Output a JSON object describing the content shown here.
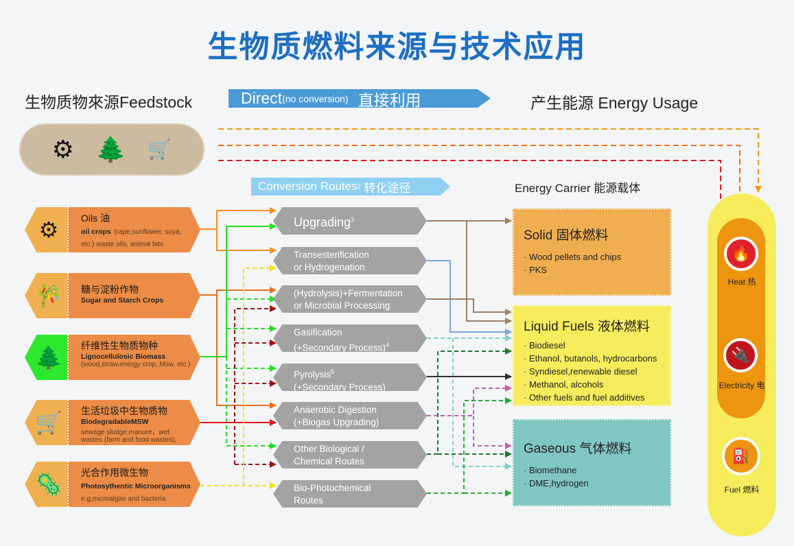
{
  "title": "生物质燃料来源与技术应用",
  "headers": {
    "feedstock": "生物质物來源Feedstock",
    "direct_main": "Direct",
    "direct_sub": "(no conversion)",
    "direct_cn": "直接利用",
    "energy_usage": "产生能源 Energy Usage",
    "conversion": "Conversion Routes",
    "conversion_sup": "2",
    "conversion_cn": "转化途径",
    "energy_carrier": "Energy Carrier  能源载体"
  },
  "direct_icons": [
    "gear-icon",
    "trees-icon",
    "wheelbarrow-icon"
  ],
  "feedstocks": [
    {
      "cn": "Oils 油",
      "en": "oil crops",
      "desc": "(rape,sunflower, soya, etc.) waste oils, animal fats",
      "icon": "gear-icon"
    },
    {
      "cn": "糖与淀粉作物",
      "en": "Sugar and Starch Crops",
      "desc": "",
      "icon": "bamboo-icon"
    },
    {
      "cn": "纤维性生物质物种",
      "en": "Lignocellulosic Biomass",
      "desc": "(wood,straw,energy crop, Msw, etc.)",
      "icon": "trees-icon"
    },
    {
      "cn": "生活垃圾中生物质物",
      "en": "BiodegradableMSW",
      "desc": "sewage sludge,manure，wet wastes (farm and food wastes), macroalgae",
      "icon": "wheelbarrow-icon"
    },
    {
      "cn": "光合作用微生物",
      "en": "Photosythentic Microorganisms",
      "desc": "e.g,microalgae and bacteria",
      "icon": "microorganism-icon"
    }
  ],
  "routes": [
    {
      "l1": "Upgrading",
      "sup": "3",
      "l2": ""
    },
    {
      "l1": "Transesterification",
      "sup": "",
      "l2": "or Hydrogenation"
    },
    {
      "l1": "(Hydrolysis)+Fermentation",
      "sup": "",
      "l2": "or Microbial Processing"
    },
    {
      "l1": "Gasification",
      "sup": "",
      "l2": "(+Secondary Process)",
      "sup2": "4"
    },
    {
      "l1": "Pyrolysis",
      "sup": "5",
      "l2": "(+Secondary Process)"
    },
    {
      "l1": "Anaerobic Digestion",
      "sup": "",
      "l2": "(+Biogas Upgrading)"
    },
    {
      "l1": "Other Biological /",
      "sup": "",
      "l2": "Chemical Routes"
    },
    {
      "l1": "Bio-Photochemical",
      "sup": "",
      "l2": "Routes"
    }
  ],
  "carriers": {
    "solid": {
      "title": "Solid  固体燃料",
      "items": [
        "· Wood pellets and chips",
        "· PKS"
      ]
    },
    "liquid": {
      "title": "Liquid Fuels 液体燃料",
      "items": [
        "· Biodiesel",
        "· Ethanol, butanols, hydrocarbons",
        "· Syndiesel,renewable diesel",
        "· Methanol, alcohols",
        "· Other fuels and fuel additives"
      ]
    },
    "gaseous": {
      "title": "Gaseous  气体燃料",
      "items": [
        "· Biomethane",
        "· DME,hydrogen"
      ]
    }
  },
  "usage": [
    {
      "label": "Heat 热",
      "icon": "fire-icon",
      "color": "#e0202a"
    },
    {
      "label": "Electricity 电",
      "icon": "plug-icon",
      "color": "#c0141c"
    },
    {
      "label": "Fuel 燃料",
      "icon": "fuel-icon",
      "color": "#ee950f"
    }
  ],
  "colors": {
    "title": "#1c6fc2",
    "direct": "#4b9bd6",
    "conversion": "#8ed0f0",
    "feedstock": "#ec8c46",
    "route": "#a3a3a3",
    "solid": "#f0ae50",
    "liquid": "#f6ec5c",
    "gaseous": "#80c6c2"
  }
}
